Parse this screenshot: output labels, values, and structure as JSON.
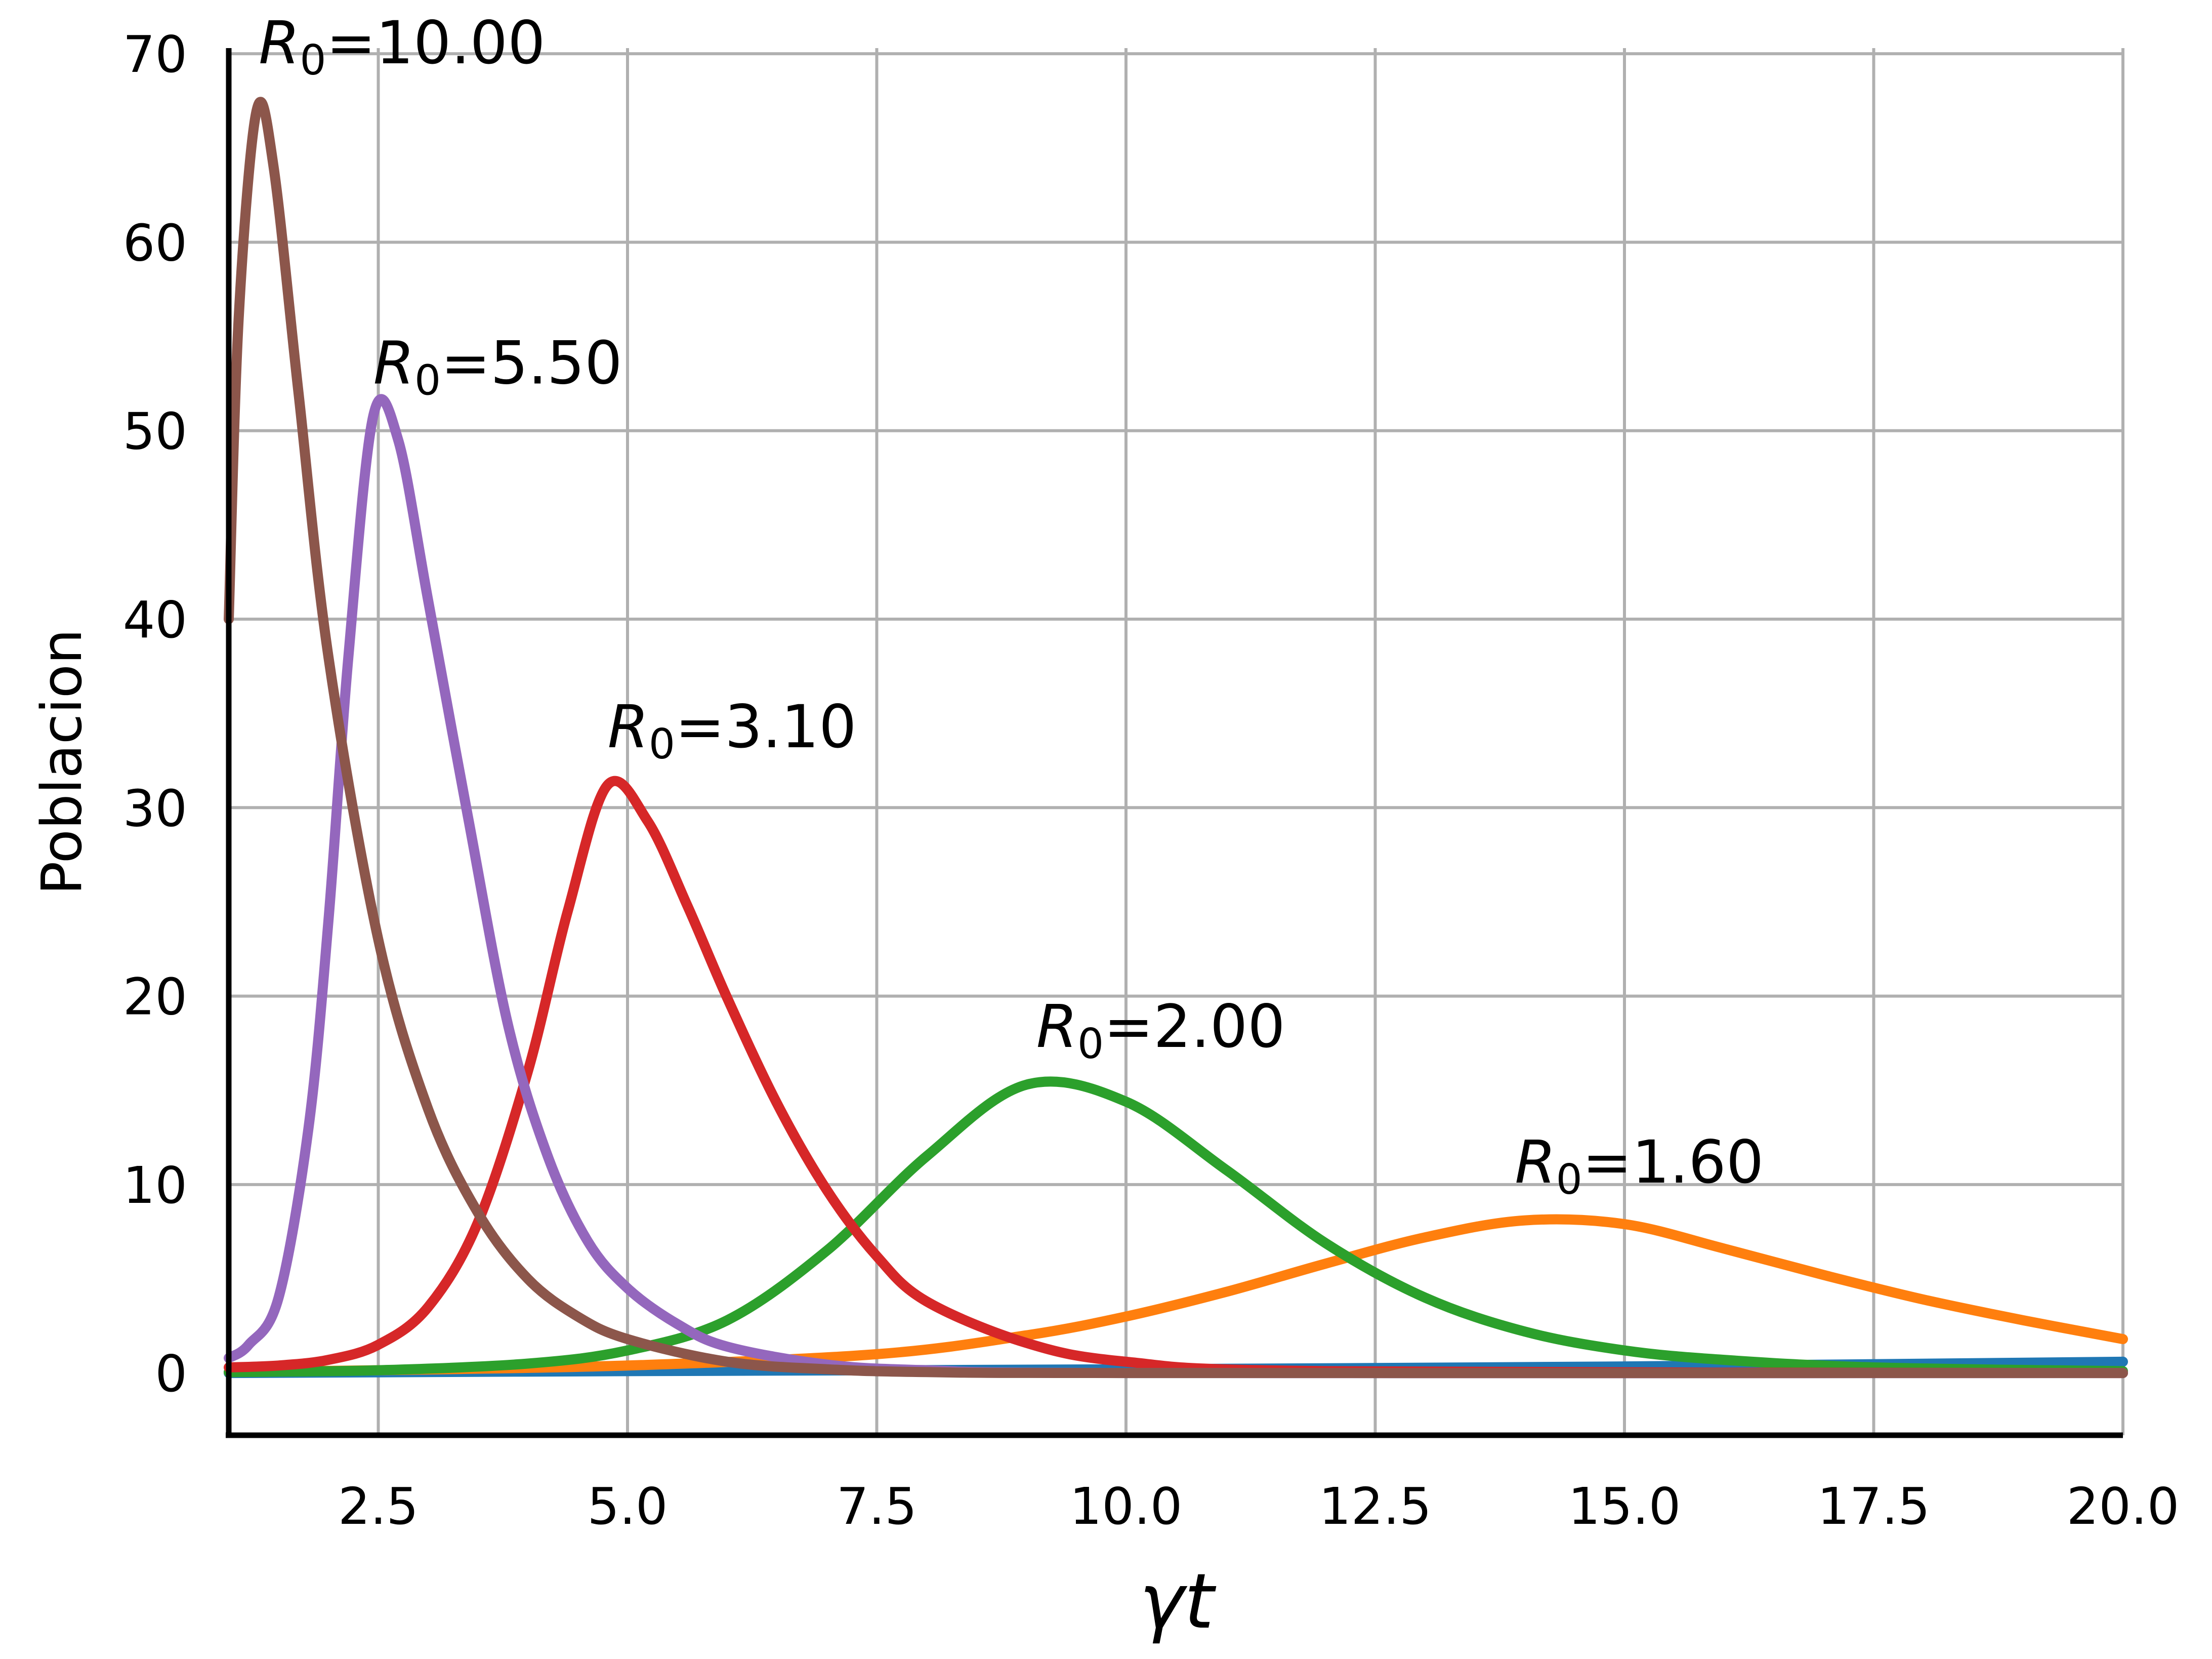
{
  "chart_data": {
    "type": "line",
    "xlabel_main": "γ",
    "xlabel_rest": "t",
    "ylabel": "Poblacion",
    "xlim": [
      1.0,
      20.0
    ],
    "ylim": [
      -3.3,
      70.3
    ],
    "x_ticks": [
      {
        "value": 2.5,
        "label": "2.5"
      },
      {
        "value": 5.0,
        "label": "5.0"
      },
      {
        "value": 7.5,
        "label": "7.5"
      },
      {
        "value": 10.0,
        "label": "10.0"
      },
      {
        "value": 12.5,
        "label": "12.5"
      },
      {
        "value": 15.0,
        "label": "15.0"
      },
      {
        "value": 17.5,
        "label": "17.5"
      },
      {
        "value": 20.0,
        "label": "20.0"
      }
    ],
    "y_ticks": [
      {
        "value": 0,
        "label": "0"
      },
      {
        "value": 10,
        "label": "10"
      },
      {
        "value": 20,
        "label": "20"
      },
      {
        "value": 30,
        "label": "30"
      },
      {
        "value": 40,
        "label": "40"
      },
      {
        "value": 50,
        "label": "50"
      },
      {
        "value": 60,
        "label": "60"
      },
      {
        "value": 70,
        "label": "70"
      }
    ],
    "grid": true,
    "series": [
      {
        "color": "#1f77b4",
        "points": [
          [
            1.0,
            0.0
          ],
          [
            5.0,
            0.1
          ],
          [
            10.0,
            0.2
          ],
          [
            15.0,
            0.35
          ],
          [
            20.0,
            0.6
          ]
        ]
      },
      {
        "color": "#ff7f0e",
        "points": [
          [
            1.0,
            0.05
          ],
          [
            2.5,
            0.15
          ],
          [
            5.0,
            0.4
          ],
          [
            7.5,
            1.0
          ],
          [
            9.0,
            2.0
          ],
          [
            10.0,
            3.0
          ],
          [
            11.0,
            4.3
          ],
          [
            12.0,
            5.8
          ],
          [
            13.0,
            7.2
          ],
          [
            14.0,
            8.1
          ],
          [
            15.0,
            7.9
          ],
          [
            16.0,
            6.6
          ],
          [
            17.0,
            5.2
          ],
          [
            18.0,
            3.9
          ],
          [
            19.0,
            2.8
          ],
          [
            20.0,
            1.8
          ]
        ]
      },
      {
        "color": "#2ca02c",
        "points": [
          [
            1.0,
            0.05
          ],
          [
            2.5,
            0.15
          ],
          [
            4.0,
            0.5
          ],
          [
            5.0,
            1.2
          ],
          [
            6.0,
            2.8
          ],
          [
            7.0,
            6.5
          ],
          [
            8.0,
            11.5
          ],
          [
            9.0,
            15.3
          ],
          [
            10.0,
            14.4
          ],
          [
            11.0,
            10.8
          ],
          [
            12.0,
            6.9
          ],
          [
            13.0,
            4.0
          ],
          [
            14.0,
            2.2
          ],
          [
            15.0,
            1.2
          ],
          [
            16.0,
            0.7
          ],
          [
            17.5,
            0.3
          ],
          [
            20.0,
            0.1
          ]
        ]
      },
      {
        "color": "#d62728",
        "points": [
          [
            1.0,
            0.3
          ],
          [
            1.5,
            0.4
          ],
          [
            2.0,
            0.7
          ],
          [
            2.5,
            1.5
          ],
          [
            3.0,
            3.5
          ],
          [
            3.5,
            8.0
          ],
          [
            4.0,
            16.0
          ],
          [
            4.4,
            24.5
          ],
          [
            4.8,
            31.2
          ],
          [
            5.2,
            29.3
          ],
          [
            5.6,
            24.8
          ],
          [
            6.0,
            19.9
          ],
          [
            6.5,
            14.3
          ],
          [
            7.0,
            9.7
          ],
          [
            7.5,
            6.2
          ],
          [
            8.0,
            3.8
          ],
          [
            9.0,
            1.6
          ],
          [
            10.0,
            0.6
          ],
          [
            12.0,
            0.1
          ],
          [
            20.0,
            0.0
          ]
        ]
      },
      {
        "color": "#9467bd",
        "points": [
          [
            1.0,
            0.8
          ],
          [
            1.2,
            1.5
          ],
          [
            1.5,
            4.0
          ],
          [
            1.8,
            13.0
          ],
          [
            2.0,
            24.0
          ],
          [
            2.2,
            38.0
          ],
          [
            2.45,
            50.8
          ],
          [
            2.7,
            49.5
          ],
          [
            3.0,
            41.0
          ],
          [
            3.4,
            29.5
          ],
          [
            3.8,
            18.5
          ],
          [
            4.2,
            11.5
          ],
          [
            4.6,
            7.0
          ],
          [
            5.0,
            4.5
          ],
          [
            5.5,
            2.6
          ],
          [
            6.0,
            1.4
          ],
          [
            7.0,
            0.45
          ],
          [
            8.0,
            0.15
          ],
          [
            10.0,
            0.0
          ],
          [
            20.0,
            0.0
          ]
        ]
      },
      {
        "color": "#8c564b",
        "points": [
          [
            1.0,
            40.0
          ],
          [
            1.1,
            56.0
          ],
          [
            1.28,
            67.0
          ],
          [
            1.45,
            64.0
          ],
          [
            1.7,
            52.0
          ],
          [
            2.0,
            38.0
          ],
          [
            2.5,
            23.0
          ],
          [
            3.0,
            14.0
          ],
          [
            3.5,
            8.5
          ],
          [
            4.0,
            5.0
          ],
          [
            4.5,
            3.0
          ],
          [
            5.0,
            1.8
          ],
          [
            6.0,
            0.6
          ],
          [
            7.0,
            0.2
          ],
          [
            8.0,
            0.05
          ],
          [
            10.0,
            0.0
          ],
          [
            20.0,
            0.0
          ]
        ]
      }
    ],
    "annotations": [
      {
        "r": "R",
        "sub": "0",
        "text": "=10.00",
        "x": 1.3,
        "y": 69.5
      },
      {
        "r": "R",
        "sub": "0",
        "text": "=5.50",
        "x": 2.45,
        "y": 52.5
      },
      {
        "r": "R",
        "sub": "0",
        "text": "=3.10",
        "x": 4.8,
        "y": 33.2
      },
      {
        "r": "R",
        "sub": "0",
        "text": "=2.00",
        "x": 9.1,
        "y": 17.3
      },
      {
        "r": "R",
        "sub": "0",
        "text": "=1.60",
        "x": 13.9,
        "y": 10.1
      }
    ]
  }
}
